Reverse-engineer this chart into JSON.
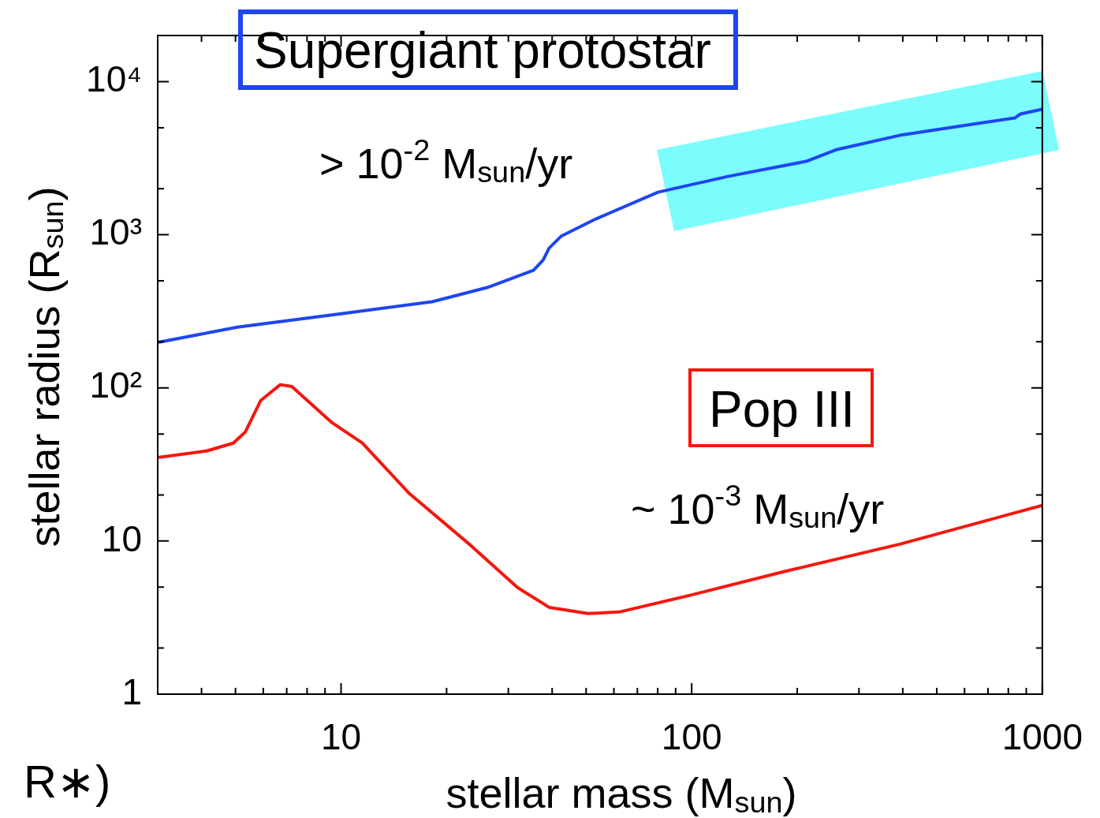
{
  "chart_data": {
    "type": "line",
    "xlabel": "stellar mass (M$_{sun}$)",
    "ylabel": "stellar radius (R$_{sun}$)",
    "log": "xy",
    "grid": false,
    "legend": false,
    "marker": "none",
    "line_style": "solid",
    "xlim": [
      3,
      1000
    ],
    "ylim": [
      1,
      20000
    ],
    "xticks": [
      {
        "value": 4,
        "label": null
      },
      {
        "value": 5,
        "label": null
      },
      {
        "value": 6,
        "label": null
      },
      {
        "value": 7,
        "label": null
      },
      {
        "value": 8,
        "label": null
      },
      {
        "value": 9,
        "label": null
      },
      10,
      {
        "value": 20,
        "label": null
      },
      {
        "value": 30,
        "label": null
      },
      {
        "value": 40,
        "label": null
      },
      {
        "value": 50,
        "label": null
      },
      {
        "value": 60,
        "label": null
      },
      {
        "value": 70,
        "label": null
      },
      {
        "value": 80,
        "label": null
      },
      {
        "value": 90,
        "label": null
      },
      100,
      {
        "value": 200,
        "label": null
      },
      {
        "value": 300,
        "label": null
      },
      {
        "value": 400,
        "label": null
      },
      {
        "value": 500,
        "label": null
      },
      {
        "value": 600,
        "label": null
      },
      {
        "value": 700,
        "label": null
      },
      {
        "value": 800,
        "label": null
      },
      {
        "value": 900,
        "label": null
      },
      1000
    ],
    "yticks": [
      1,
      {
        "value": 2,
        "label": null
      },
      {
        "value": 5,
        "label": null
      },
      10,
      {
        "value": 20,
        "label": null
      },
      {
        "value": 50,
        "label": null
      },
      {
        "value": 100,
        "label": "10²"
      },
      {
        "value": 200,
        "label": null
      },
      {
        "value": 500,
        "label": null
      },
      {
        "value": 1000,
        "label": "10³"
      },
      {
        "value": 2000,
        "label": null
      },
      {
        "value": 5000,
        "label": null
      },
      {
        "value": 10000,
        "label": "10⁴"
      }
    ],
    "series": [
      {
        "color": "#1f45f0",
        "x": [
          3.03,
          5.06,
          10,
          18.2,
          26.1,
          35.4,
          37.7,
          39.2,
          42.4,
          53.3,
          80.2,
          127,
          212,
          260,
          392,
          654,
          836,
          867,
          1000
        ],
        "values": [
          199,
          249,
          305,
          365,
          452,
          586,
          684,
          817,
          977,
          1268,
          1897,
          2405,
          3013,
          3606,
          4457,
          5333,
          5793,
          6149,
          6607
        ]
      },
      {
        "color": "#f5170f",
        "x": [
          3.03,
          4.13,
          4.93,
          5.33,
          5.9,
          6.71,
          7.24,
          9.36,
          11.5,
          15.6,
          23.5,
          31.9,
          39.2,
          50.6,
          62.1,
          98.5,
          182,
          392,
          1000
        ],
        "values": [
          35.2,
          38.7,
          43.6,
          51.4,
          82.7,
          105,
          102,
          60,
          43.6,
          20.6,
          9.31,
          4.96,
          3.69,
          3.36,
          3.44,
          4.41,
          6.29,
          9.53,
          17.1
        ]
      }
    ],
    "annotations": [
      "Supergiant protostar",
      "> 10$^{-2}$ M$_{sun}$/yr",
      "Pop III",
      "~ 10$^{-3}$ M$_{sun}$/yr",
      "R∗)"
    ]
  }
}
